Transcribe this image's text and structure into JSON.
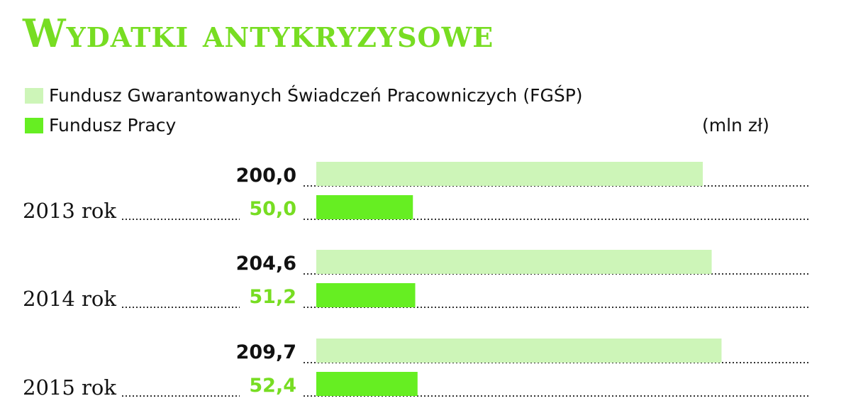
{
  "title": "Wydatki antykryzysowe",
  "legend": [
    {
      "label": "Fundusz Gwarantowanych Świadczeń Pracowniczych (FGŚP)",
      "color": "#cdf5b8"
    },
    {
      "label": "Fundusz Pracy",
      "color": "#66ee22"
    }
  ],
  "unit": "(mln zł)",
  "colors": {
    "title": "#77dd22",
    "fgsp_bar": "#cdf5b8",
    "fp_bar": "#66ee22",
    "fgsp_label": "#111111",
    "fp_label": "#77dd22"
  },
  "chart_data": {
    "type": "bar",
    "orientation": "horizontal",
    "categories": [
      "2013 rok",
      "2014 rok",
      "2015 rok"
    ],
    "series": [
      {
        "name": "Fundusz Gwarantowanych Świadczeń Pracowniczych (FGŚP)",
        "values": [
          200.0,
          204.6,
          209.7
        ],
        "labels": [
          "200,0",
          "204,6",
          "209,7"
        ]
      },
      {
        "name": "Fundusz Pracy",
        "values": [
          50.0,
          51.2,
          52.4
        ],
        "labels": [
          "50,0",
          "51,2",
          "52,4"
        ]
      }
    ],
    "title": "Wydatki antykryzysowe",
    "unit": "(mln zł)",
    "xlim": [
      0,
      210
    ],
    "grid": false,
    "legend_position": "top-left"
  }
}
